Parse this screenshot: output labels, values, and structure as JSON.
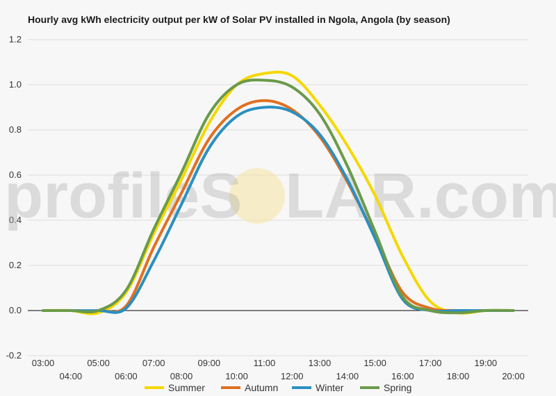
{
  "chart_data": {
    "type": "line",
    "title": "Hourly avg kWh electricity output per kW of Solar PV installed in Ngola, Angola (by season)",
    "xlabel": "",
    "ylabel": "",
    "x": [
      "03:00",
      "04:00",
      "05:00",
      "06:00",
      "07:00",
      "08:00",
      "09:00",
      "10:00",
      "11:00",
      "12:00",
      "13:00",
      "14:00",
      "15:00",
      "16:00",
      "17:00",
      "18:00",
      "19:00",
      "20:00"
    ],
    "ylim": [
      -0.2,
      1.2
    ],
    "yticks": [
      -0.2,
      0.0,
      0.2,
      0.4,
      0.6,
      0.8,
      1.0,
      1.2
    ],
    "grid": true,
    "legend_position": "bottom",
    "series": [
      {
        "name": "Summer",
        "color": "#f5d800",
        "values": [
          0,
          0,
          -0.01,
          0.08,
          0.34,
          0.58,
          0.83,
          1.0,
          1.05,
          1.04,
          0.91,
          0.73,
          0.51,
          0.24,
          0.04,
          -0.01,
          0,
          0
        ]
      },
      {
        "name": "Autumn",
        "color": "#e07020",
        "values": [
          0,
          0,
          0,
          0.02,
          0.28,
          0.52,
          0.76,
          0.89,
          0.93,
          0.89,
          0.77,
          0.57,
          0.33,
          0.08,
          0.01,
          0,
          0,
          0
        ]
      },
      {
        "name": "Winter",
        "color": "#2a8fc1",
        "values": [
          0,
          0,
          0,
          0.01,
          0.22,
          0.47,
          0.72,
          0.86,
          0.9,
          0.88,
          0.78,
          0.58,
          0.32,
          0.05,
          0,
          0,
          0,
          0
        ]
      },
      {
        "name": "Spring",
        "color": "#6a9a4a",
        "values": [
          0,
          0,
          0,
          0.09,
          0.36,
          0.61,
          0.87,
          1.0,
          1.02,
          0.99,
          0.87,
          0.64,
          0.35,
          0.06,
          0,
          -0.01,
          0,
          0
        ]
      }
    ]
  },
  "watermark": {
    "left": "profileS",
    "right": "LAR.com"
  }
}
